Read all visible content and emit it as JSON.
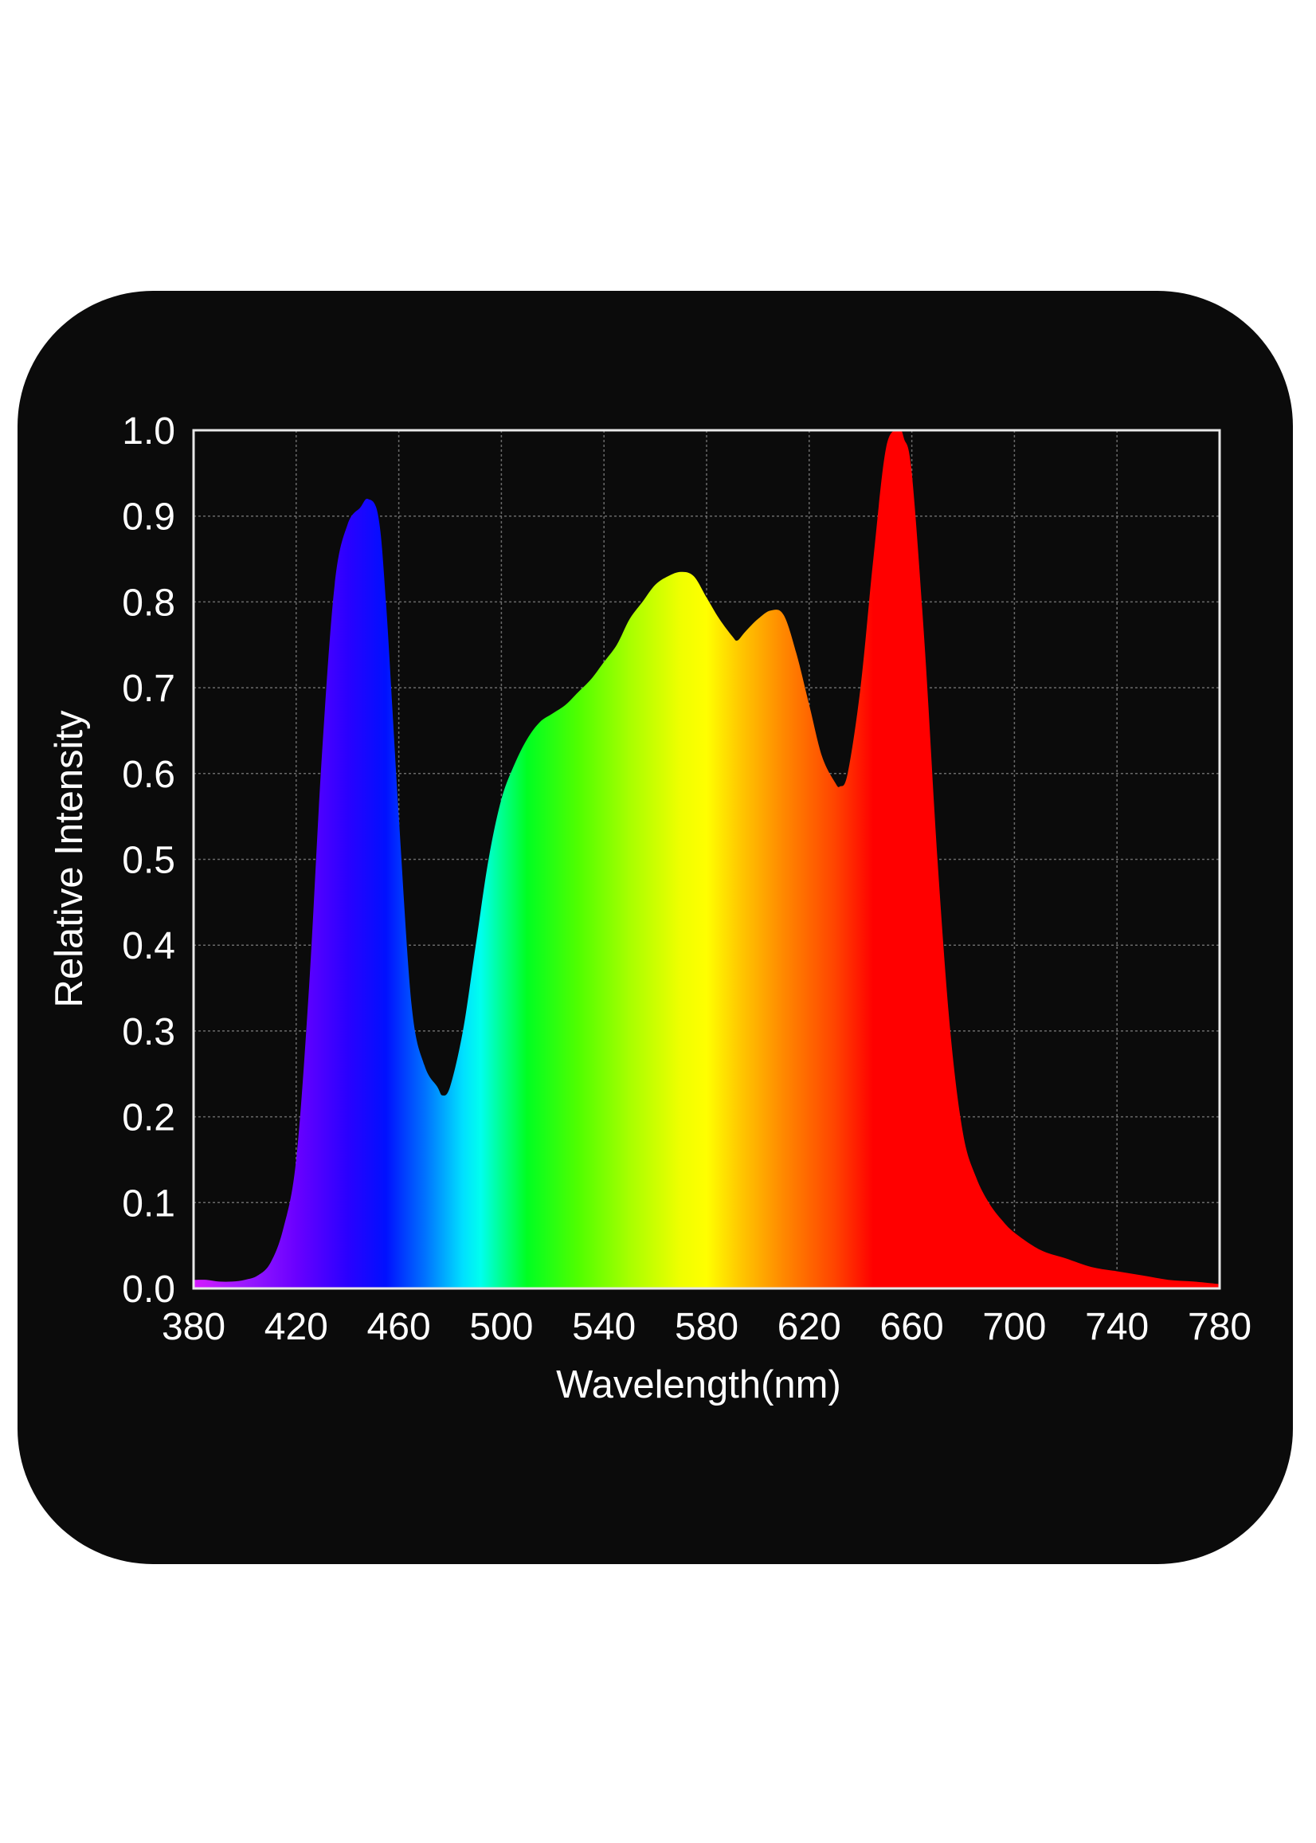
{
  "chart_data": {
    "type": "area",
    "title": "",
    "xlabel": "Wavelength(nm)",
    "ylabel": "Relative Intensity",
    "xlim": [
      380,
      780
    ],
    "ylim": [
      0.0,
      1.0
    ],
    "x_ticks": [
      "380",
      "420",
      "460",
      "500",
      "540",
      "580",
      "620",
      "660",
      "700",
      "740",
      "780"
    ],
    "y_ticks": [
      "0.0",
      "0.1",
      "0.2",
      "0.3",
      "0.4",
      "0.5",
      "0.6",
      "0.7",
      "0.8",
      "0.9",
      "1.0"
    ],
    "grid": true,
    "legend": "none",
    "background_color": "#0b0b0b",
    "fill": "visible-spectrum-gradient",
    "series": [
      {
        "x": [
          380,
          385,
          390,
          395,
          400,
          405,
          410,
          415,
          420,
          425,
          430,
          435,
          440,
          445,
          448,
          452,
          455,
          460,
          465,
          470,
          475,
          477,
          480,
          485,
          490,
          495,
          500,
          505,
          510,
          515,
          520,
          525,
          530,
          535,
          540,
          545,
          550,
          555,
          560,
          565,
          570,
          575,
          580,
          585,
          590,
          592,
          595,
          600,
          605,
          610,
          615,
          620,
          625,
          630,
          632,
          635,
          640,
          645,
          650,
          655,
          657,
          660,
          665,
          670,
          675,
          680,
          685,
          690,
          695,
          700,
          710,
          720,
          730,
          740,
          750,
          760,
          770,
          780
        ],
        "y": [
          0.01,
          0.01,
          0.008,
          0.008,
          0.01,
          0.015,
          0.03,
          0.07,
          0.15,
          0.35,
          0.62,
          0.82,
          0.89,
          0.91,
          0.92,
          0.9,
          0.8,
          0.55,
          0.33,
          0.26,
          0.235,
          0.225,
          0.235,
          0.3,
          0.4,
          0.5,
          0.57,
          0.61,
          0.64,
          0.66,
          0.67,
          0.68,
          0.695,
          0.71,
          0.73,
          0.75,
          0.78,
          0.8,
          0.82,
          0.83,
          0.835,
          0.83,
          0.805,
          0.78,
          0.76,
          0.755,
          0.765,
          0.78,
          0.79,
          0.785,
          0.74,
          0.68,
          0.62,
          0.59,
          0.585,
          0.6,
          0.7,
          0.85,
          0.98,
          1.0,
          0.99,
          0.95,
          0.75,
          0.5,
          0.3,
          0.18,
          0.13,
          0.1,
          0.08,
          0.065,
          0.045,
          0.035,
          0.025,
          0.02,
          0.015,
          0.01,
          0.008,
          0.005
        ]
      }
    ]
  }
}
